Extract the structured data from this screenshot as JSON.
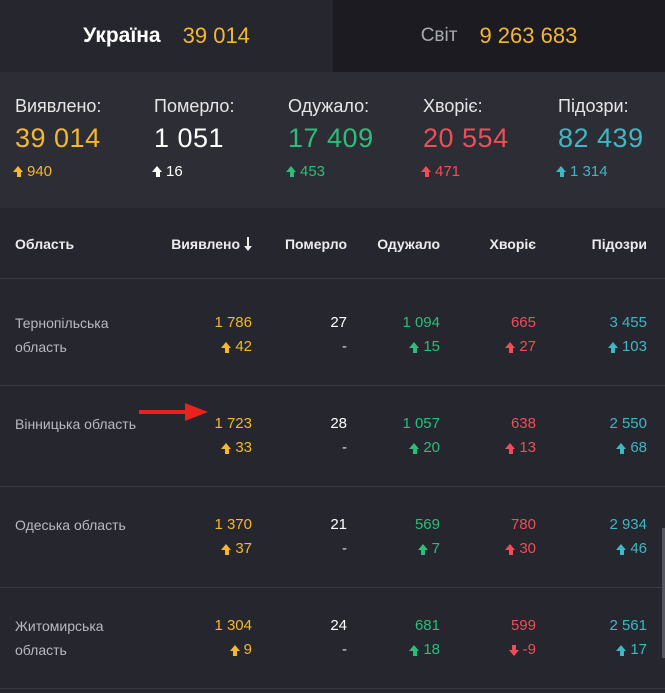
{
  "tabs": {
    "ukraine": {
      "name": "Україна",
      "count": "39 014"
    },
    "world": {
      "name": "Світ",
      "count": "9 263 683"
    }
  },
  "summary": [
    {
      "label": "Виявлено:",
      "value": "39 014",
      "delta": "940",
      "color": "#f5b730"
    },
    {
      "label": "Померло:",
      "value": "1 051",
      "delta": "16",
      "color": "#ffffff"
    },
    {
      "label": "Одужало:",
      "value": "17 409",
      "delta": "453",
      "color": "#2dbd7a"
    },
    {
      "label": "Хворіє:",
      "value": "20 554",
      "delta": "471",
      "color": "#ef4e58"
    },
    {
      "label": "Підозри:",
      "value": "82 439",
      "delta": "1 314",
      "color": "#3fb7c4"
    }
  ],
  "table": {
    "headers": {
      "region": "Область",
      "detected": "Виявлено",
      "dead": "Померло",
      "recovered": "Одужало",
      "sick": "Хворіє",
      "suspected": "Підозри"
    },
    "rows": [
      {
        "region": "Тернопільська область",
        "detected": "1 786",
        "detected_delta": "42",
        "dead": "27",
        "dead_delta": "-",
        "recovered": "1 094",
        "recovered_delta": "15",
        "sick": "665",
        "sick_delta": "27",
        "sick_dir": "up",
        "suspected": "3 455",
        "suspected_delta": "103"
      },
      {
        "region": "Вінницька область",
        "detected": "1 723",
        "detected_delta": "33",
        "dead": "28",
        "dead_delta": "-",
        "recovered": "1 057",
        "recovered_delta": "20",
        "sick": "638",
        "sick_delta": "13",
        "sick_dir": "up",
        "suspected": "2 550",
        "suspected_delta": "68"
      },
      {
        "region": "Одеська область",
        "detected": "1 370",
        "detected_delta": "37",
        "dead": "21",
        "dead_delta": "-",
        "recovered": "569",
        "recovered_delta": "7",
        "sick": "780",
        "sick_delta": "30",
        "sick_dir": "up",
        "suspected": "2 934",
        "suspected_delta": "46"
      },
      {
        "region": "Житомирська область",
        "detected": "1 304",
        "detected_delta": "9",
        "dead": "24",
        "dead_delta": "-",
        "recovered": "681",
        "recovered_delta": "18",
        "sick": "599",
        "sick_delta": "-9",
        "sick_dir": "down",
        "suspected": "2 561",
        "suspected_delta": "17"
      }
    ]
  },
  "colors": {
    "detected": "#f5b730",
    "dead": "#ffffff",
    "recovered": "#2dbd7a",
    "sick": "#ef4e58",
    "suspected": "#3fb7c4",
    "annotation_arrow": "#e8231f"
  },
  "icons": {
    "sort": "sort-down-arrow-icon",
    "increase": "arrow-up-icon",
    "decrease": "arrow-down-icon",
    "annotation": "red-pointer-arrow-icon"
  }
}
